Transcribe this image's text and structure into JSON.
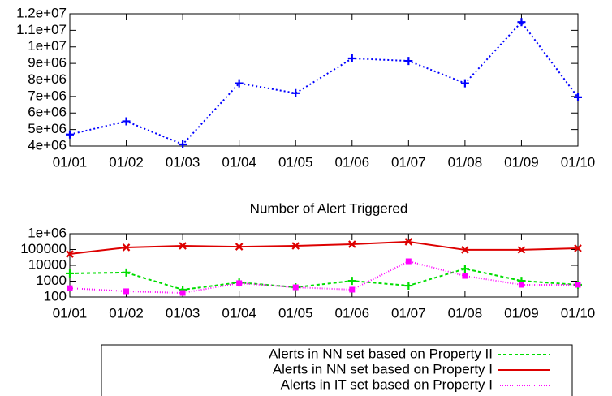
{
  "chart_data": [
    {
      "type": "line",
      "categories": [
        "01/01",
        "01/02",
        "01/03",
        "01/04",
        "01/05",
        "01/06",
        "01/07",
        "01/08",
        "01/09",
        "01/10"
      ],
      "values": [
        4700000,
        5500000,
        4100000,
        7800000,
        7200000,
        9300000,
        9150000,
        7800000,
        11500000,
        6950000
      ],
      "color": "#0000ff",
      "ylim": [
        4000000,
        12000000
      ],
      "yticks": [
        {
          "value": 12000000,
          "label": "1.2e+07"
        },
        {
          "value": 11000000,
          "label": "1.1e+07"
        },
        {
          "value": 10000000,
          "label": "1e+07"
        },
        {
          "value": 9000000,
          "label": "9e+06"
        },
        {
          "value": 8000000,
          "label": "8e+06"
        },
        {
          "value": 7000000,
          "label": "7e+06"
        },
        {
          "value": 6000000,
          "label": "6e+06"
        },
        {
          "value": 5000000,
          "label": "5e+06"
        },
        {
          "value": 4000000,
          "label": "4e+06"
        }
      ]
    },
    {
      "type": "line",
      "title": "Number of Alert Triggered",
      "categories": [
        "01/01",
        "01/02",
        "01/03",
        "01/04",
        "01/05",
        "01/06",
        "01/07",
        "01/08",
        "01/09",
        "01/10"
      ],
      "log_scale": true,
      "ylim": [
        100,
        1000000
      ],
      "yticks": [
        {
          "value": 1000000,
          "label": "1e+06"
        },
        100000,
        10000,
        1000,
        100
      ],
      "legend": "bottom",
      "series": [
        {
          "name": "Alerts in NN set based on Property II",
          "color": "#00dd00",
          "values": [
            3100,
            3500,
            290,
            830,
            410,
            1050,
            520,
            6100,
            1050,
            590
          ]
        },
        {
          "name": "Alerts in NN set based on Property I",
          "color": "#dd0000",
          "values": [
            52000,
            135000,
            170000,
            150000,
            170000,
            215000,
            310000,
            95000,
            95000,
            120000
          ]
        },
        {
          "name": "Alerts in IT set based on Property I",
          "color": "#ff00ff",
          "values": [
            360,
            230,
            180,
            750,
            410,
            290,
            18000,
            2150,
            590,
            590
          ]
        }
      ]
    }
  ]
}
